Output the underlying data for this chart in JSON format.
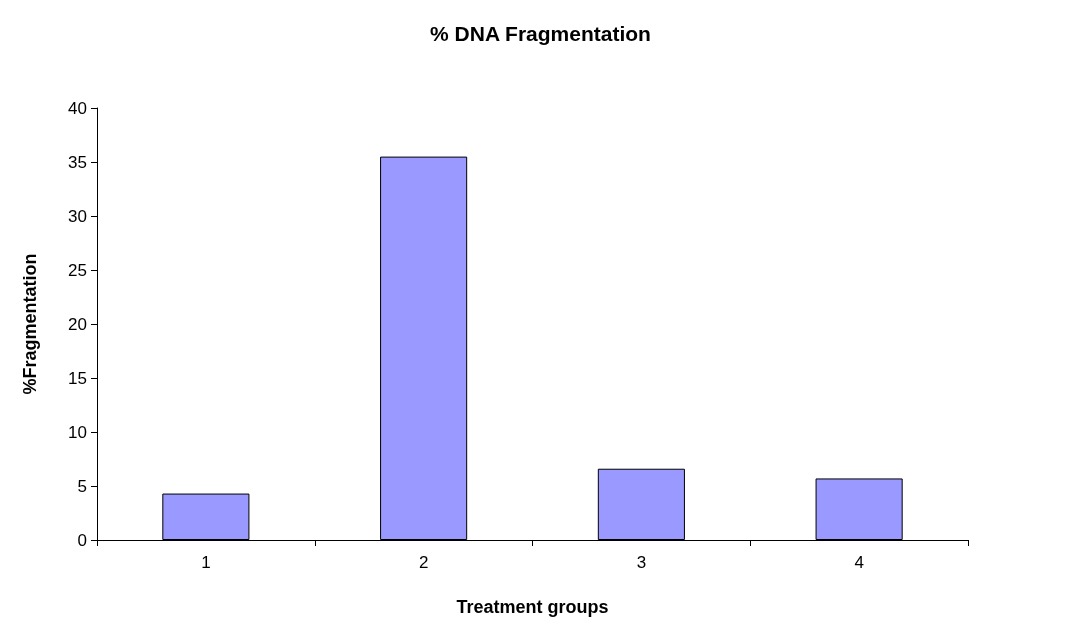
{
  "chart_data": {
    "type": "bar",
    "title": "% DNA Fragmentation",
    "xlabel": "Treatment groups",
    "ylabel": "%Fragmentation",
    "categories": [
      "1",
      "2",
      "3",
      "4"
    ],
    "values": [
      4.3,
      35.5,
      6.6,
      5.7
    ],
    "color": "#9999ff",
    "ylim": [
      0,
      40
    ],
    "yticks": [
      0,
      5,
      10,
      15,
      20,
      25,
      30,
      35,
      40
    ],
    "grid": false
  }
}
